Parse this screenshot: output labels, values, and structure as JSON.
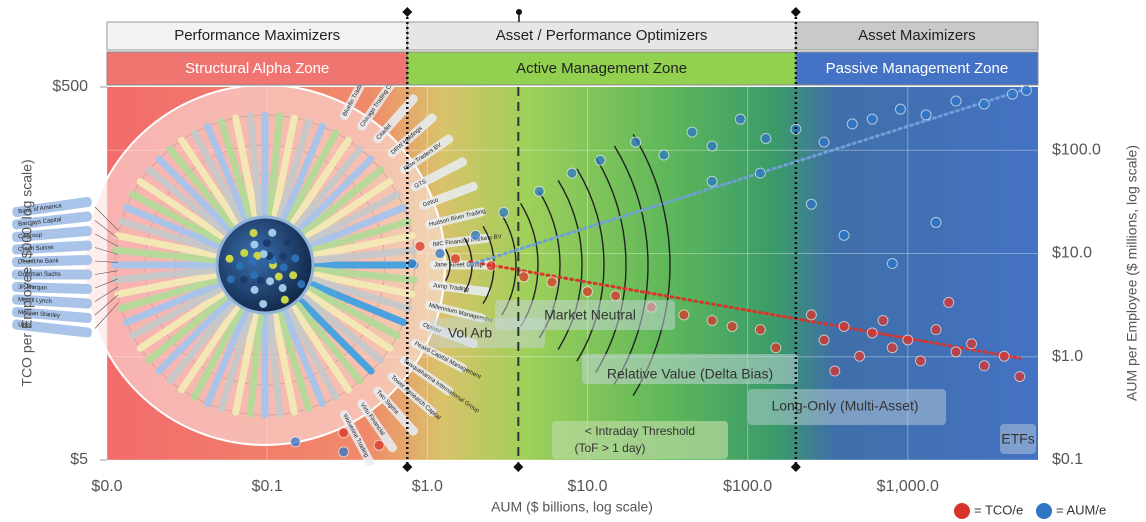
{
  "chart_data": {
    "type": "scatter",
    "x_label": "AUM ($ billions, log scale)",
    "y_label": "TCO per Employee ($000, log scale)",
    "y2_label": "AUM per Employee ($ millions, log scale)",
    "xlim": [
      0.01,
      6500
    ],
    "ylim": [
      5,
      500
    ],
    "y2lim": [
      0.1,
      410
    ],
    "log_scale": true,
    "grid": true,
    "xticks": [
      {
        "value": 0.01,
        "label": "$0.0"
      },
      {
        "value": 0.1,
        "label": "$0.1"
      },
      {
        "value": 1,
        "label": "$1.0"
      },
      {
        "value": 10,
        "label": "$10.0"
      },
      {
        "value": 100,
        "label": "$100.0"
      },
      {
        "value": 1000,
        "label": "$1,000.0"
      }
    ],
    "yticks": [
      {
        "value": 5,
        "label": "$5"
      },
      {
        "value": 500,
        "label": "$500"
      }
    ],
    "y2ticks": [
      {
        "value": 0.1,
        "label": "$0.1"
      },
      {
        "value": 1,
        "label": "$1.0"
      },
      {
        "value": 10,
        "label": "$10.0"
      },
      {
        "value": 100,
        "label": "$100.0"
      }
    ],
    "headers": [
      "Performance Maximizers",
      "Asset / Performance Optimizers",
      "Asset Maximizers"
    ],
    "zones": [
      {
        "name": "Structural Alpha Zone",
        "color": "#f07470"
      },
      {
        "name": "Active Management Zone",
        "color": "#92d050"
      },
      {
        "name": "Passive Management Zone",
        "color": "#4472c4"
      }
    ],
    "boundaries": [
      0.75,
      200
    ],
    "threshold": 3.7,
    "threshold_label": [
      "< Intraday Threshold",
      "(ToF > 1 day)"
    ],
    "strategies": [
      "Vol Arb",
      "Market Neutral",
      "Relative Value (Delta Bias)",
      "Long-Only (Multi-Asset)",
      "ETFs"
    ],
    "series": [
      {
        "name": "= TCO/e",
        "color": "#d9342b",
        "x": [
          0.9,
          1.5,
          2.5,
          4,
          6,
          10,
          15,
          25,
          40,
          60,
          80,
          120,
          150,
          250,
          300,
          400,
          500,
          600,
          800,
          1000,
          1200,
          1500,
          2000,
          2500,
          3000,
          4000,
          5000,
          350,
          700,
          1800,
          0.3,
          0.5
        ],
        "values": [
          70,
          60,
          55,
          48,
          45,
          40,
          38,
          33,
          30,
          28,
          26,
          25,
          20,
          30,
          22,
          26,
          18,
          24,
          20,
          22,
          17,
          25,
          19,
          21,
          16,
          18,
          14,
          15,
          28,
          35,
          7,
          6
        ]
      },
      {
        "name": "= AUM/e",
        "color": "#2e75c6",
        "axis": "y2",
        "x": [
          0.8,
          1.2,
          2,
          3,
          5,
          8,
          12,
          20,
          30,
          45,
          60,
          90,
          130,
          200,
          300,
          450,
          600,
          900,
          1300,
          2000,
          3000,
          4500,
          5500,
          400,
          800,
          60,
          120,
          250,
          1500,
          0.15,
          0.3
        ],
        "values": [
          8,
          10,
          15,
          25,
          40,
          60,
          80,
          120,
          90,
          150,
          110,
          200,
          130,
          160,
          120,
          180,
          200,
          250,
          220,
          300,
          280,
          350,
          380,
          15,
          8,
          50,
          60,
          30,
          20,
          0.15,
          0.12
        ]
      }
    ],
    "trends": [
      {
        "color": "#d9342b",
        "x": [
          1.85,
          5000
        ],
        "values": [
          58,
          17.6
        ]
      },
      {
        "color": "#6f9fd8",
        "axis": "y2",
        "x": [
          1.85,
          5700
        ],
        "values": [
          7.8,
          400
        ]
      }
    ],
    "diagram": {
      "banks": [
        "Bank of America",
        "Barclays Capital",
        "Citigroup",
        "Credit Suisse",
        "Deutsche Bank",
        "Goldman Sachs",
        "JP Morgan",
        "Merrill Lynch",
        "Morgan Stanley",
        "UBS"
      ],
      "firms": [
        "Bluefin Trading",
        "Chicago Trading Company",
        "Citadel",
        "DRW Holdings",
        "Flow Traders BV",
        "GTS",
        "Getco",
        "Hudson River Trading",
        "IMC Financial Markets BV",
        "Jane Street Group",
        "Jump Trading",
        "Millennium Management",
        "Optiver",
        "Peak6 Capital Management",
        "Susquehanna International Group",
        "Tower Research Capital",
        "Two Sigma",
        "Virtu Financial",
        "Wolverine Trading"
      ]
    }
  }
}
